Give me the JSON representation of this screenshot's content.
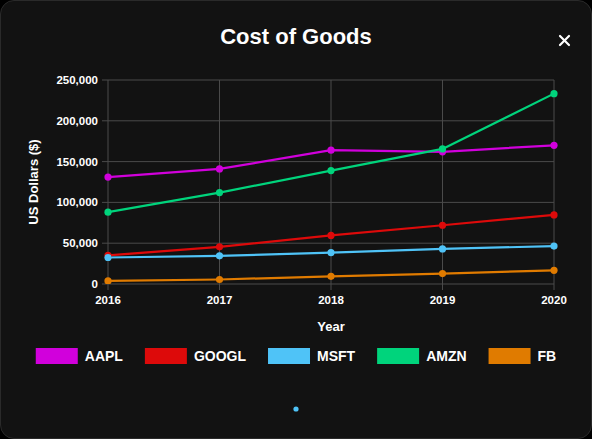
{
  "chart_data": {
    "type": "line",
    "title": "Cost of Goods",
    "x_label": "Year",
    "y_label": "US Dollars ($)",
    "categories": [
      "2016",
      "2017",
      "2018",
      "2019",
      "2020"
    ],
    "series": [
      {
        "name": "AAPL",
        "color": "#d100dc",
        "values": [
          131000,
          141000,
          164000,
          162000,
          170000
        ]
      },
      {
        "name": "GOOGL",
        "color": "#dd0a0a",
        "values": [
          35000,
          45500,
          59500,
          72000,
          84700
        ]
      },
      {
        "name": "MSFT",
        "color": "#4fc3f7",
        "values": [
          32500,
          34500,
          38500,
          43000,
          46500
        ]
      },
      {
        "name": "AMZN",
        "color": "#00d47c",
        "values": [
          88000,
          112000,
          139000,
          165500,
          233300
        ]
      },
      {
        "name": "FB",
        "color": "#e07b00",
        "values": [
          3800,
          5500,
          9400,
          12800,
          16700
        ]
      }
    ],
    "ylim": [
      0,
      250000
    ],
    "yticks": [
      0,
      {
        "value": 50000,
        "label": "50,000"
      },
      {
        "value": 100000,
        "label": "100,000"
      },
      {
        "value": 150000,
        "label": "150,000"
      },
      {
        "value": 200000,
        "label": "200,000"
      },
      {
        "value": 250000,
        "label": "250,000"
      }
    ],
    "grid": true,
    "legend": "bottom",
    "marker": "circle"
  }
}
